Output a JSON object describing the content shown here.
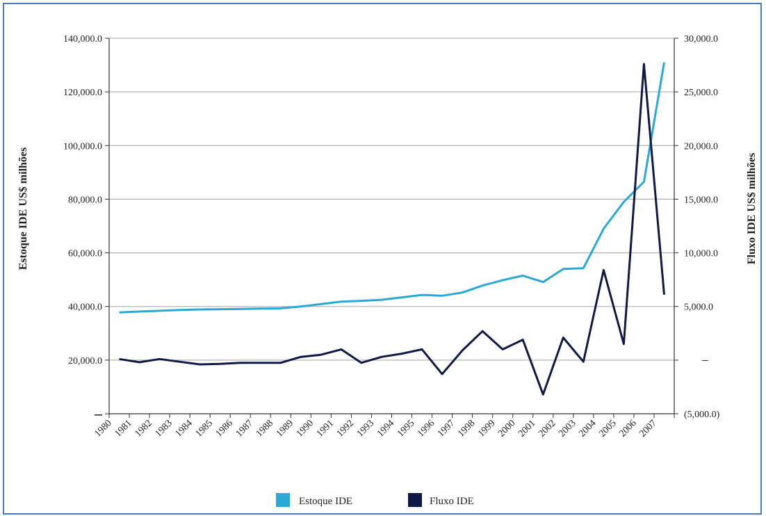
{
  "chart_data": {
    "type": "line",
    "x": [
      "1980",
      "1981",
      "1982",
      "1983",
      "1984",
      "1985",
      "1986",
      "1987",
      "1988",
      "1989",
      "1990",
      "1991",
      "1992",
      "1993",
      "1994",
      "1995",
      "1996",
      "1997",
      "1998",
      "1999",
      "2000",
      "2001",
      "2002",
      "2003",
      "2004",
      "2005",
      "2006",
      "2007"
    ],
    "series": [
      {
        "name": "Estoque IDE",
        "axis": "left",
        "color": "#29a9d4",
        "values": [
          37800,
          38100,
          38400,
          38700,
          38900,
          39000,
          39100,
          39200,
          39300,
          40000,
          40900,
          41800,
          42100,
          42500,
          43400,
          44300,
          44000,
          45200,
          47800,
          49800,
          51500,
          49100,
          54000,
          54300,
          69000,
          79000,
          86500,
          131000
        ]
      },
      {
        "name": "Fluxo IDE",
        "axis": "right",
        "color": "#0e1a45",
        "values": [
          100,
          -200,
          100,
          -150,
          -400,
          -350,
          -250,
          -250,
          -250,
          300,
          500,
          1000,
          -250,
          300,
          600,
          1000,
          -1300,
          900,
          2700,
          1000,
          1900,
          -3200,
          2100,
          -150,
          8400,
          1500,
          27600,
          6100
        ]
      }
    ],
    "y_left": {
      "label": "Estoque IDE US$ milhões",
      "ticks": [
        {
          "value": 0,
          "label": "–"
        },
        {
          "value": 20000,
          "label": "20,000.0"
        },
        {
          "value": 40000,
          "label": "40,000.0"
        },
        {
          "value": 60000,
          "label": "60,000.0"
        },
        {
          "value": 80000,
          "label": "80,000.0"
        },
        {
          "value": 100000,
          "label": "100,000.0"
        },
        {
          "value": 120000,
          "label": "120,000.0"
        },
        {
          "value": 140000,
          "label": "140,000.0"
        }
      ],
      "range": [
        0,
        140000
      ]
    },
    "y_right": {
      "label": "Fluxo IDE US$ milhões",
      "ticks": [
        {
          "value": -5000,
          "label": "(5,000.0)"
        },
        {
          "value": 0,
          "label": "–"
        },
        {
          "value": 5000,
          "label": "5,000.0"
        },
        {
          "value": 10000,
          "label": "10,000.0"
        },
        {
          "value": 15000,
          "label": "15,000.0"
        },
        {
          "value": 20000,
          "label": "20,000.0"
        },
        {
          "value": 25000,
          "label": "25,000.0"
        },
        {
          "value": 30000,
          "label": "30,000.0"
        }
      ],
      "range": [
        -5000,
        30000
      ]
    },
    "grid": true,
    "legend_position": "bottom"
  }
}
